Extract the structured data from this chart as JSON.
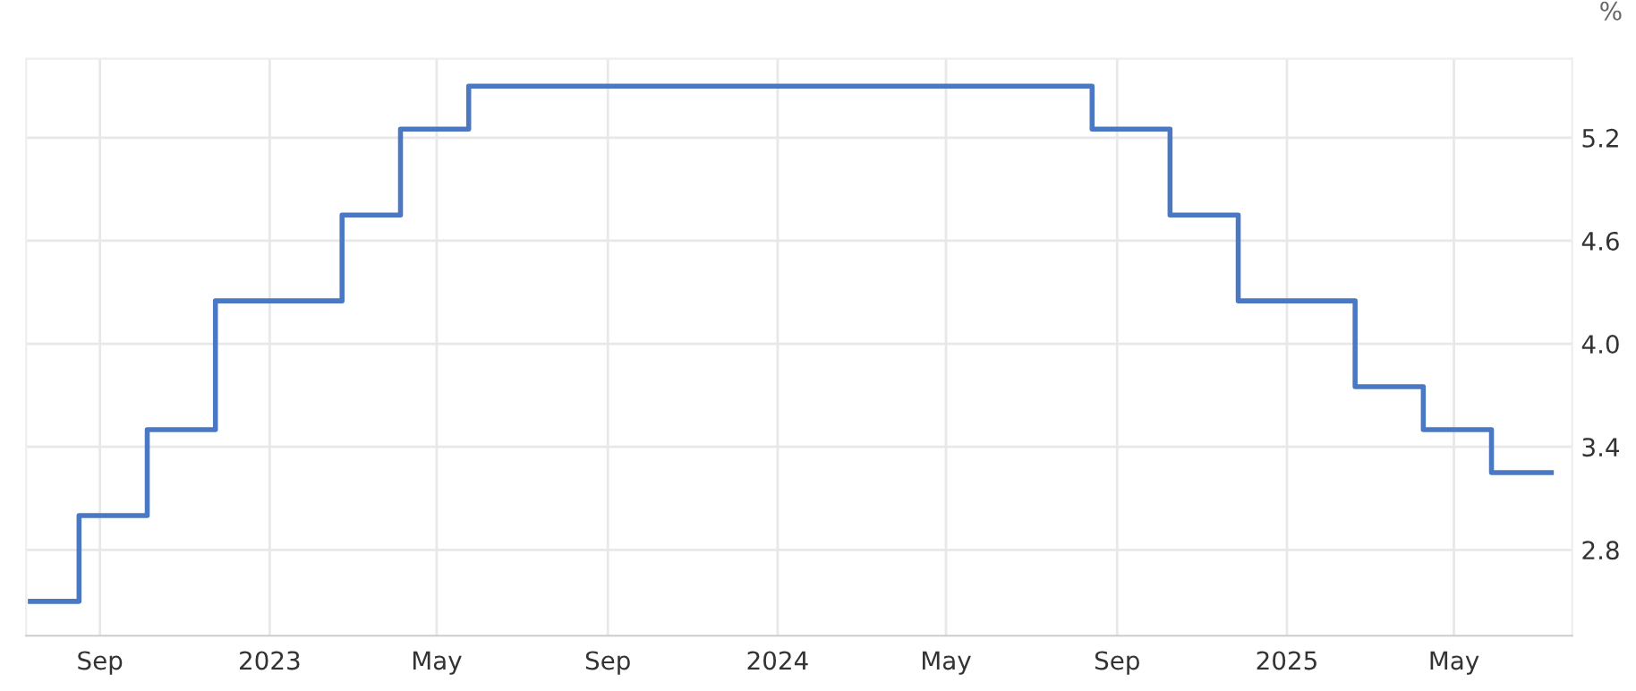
{
  "chart_data": {
    "type": "step",
    "ylabel": "%",
    "x": [
      "2022-07-13",
      "2022-08-17",
      "2022-10-05",
      "2022-11-23",
      "2023-02-22",
      "2023-04-05",
      "2023-05-24",
      "2024-08-14",
      "2024-10-09",
      "2024-11-27",
      "2025-02-19",
      "2025-04-09",
      "2025-05-28",
      "2025-07-10"
    ],
    "series": [
      {
        "color": "#4a78c2",
        "values": [
          2.5,
          3.0,
          3.5,
          4.25,
          4.75,
          5.25,
          5.5,
          5.25,
          4.75,
          4.25,
          3.75,
          3.5,
          3.25,
          3.25
        ]
      }
    ],
    "xlim": [
      "2022-07-10",
      "2025-07-25"
    ],
    "xticks": [
      {
        "value": "2022-09-01",
        "label": "Sep"
      },
      {
        "value": "2023-01-01",
        "label": "2023"
      },
      {
        "value": "2023-05-01",
        "label": "May"
      },
      {
        "value": "2023-09-01",
        "label": "Sep"
      },
      {
        "value": "2024-01-01",
        "label": "2024"
      },
      {
        "value": "2024-05-01",
        "label": "May"
      },
      {
        "value": "2024-09-01",
        "label": "Sep"
      },
      {
        "value": "2025-01-01",
        "label": "2025"
      },
      {
        "value": "2025-05-01",
        "label": "May"
      }
    ],
    "ylim": [
      2.3,
      5.66
    ],
    "yticks": [
      2.8,
      3.4,
      {
        "value": 4,
        "label": "4.0"
      },
      4.6,
      5.2
    ],
    "grid": true,
    "line_style": "solid",
    "marker": "none"
  }
}
